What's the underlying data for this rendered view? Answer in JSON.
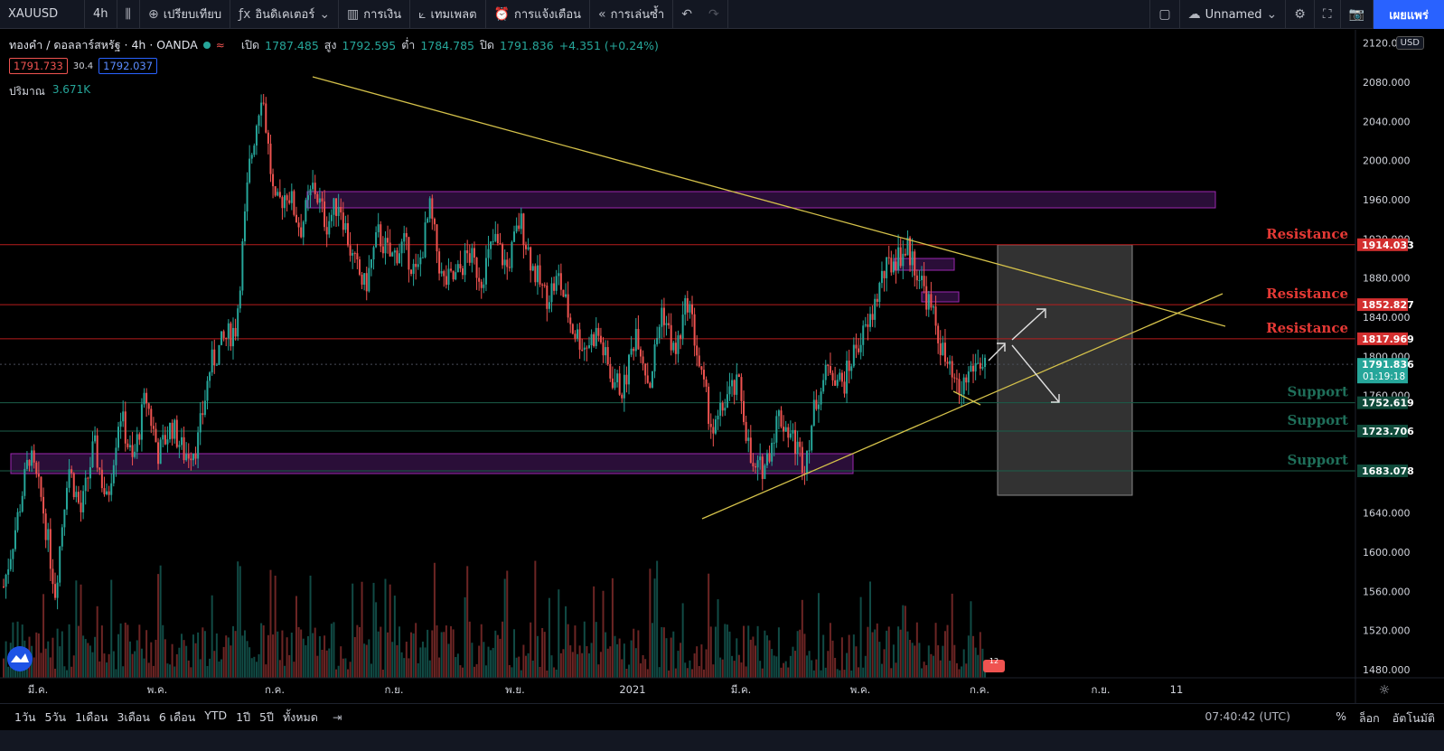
{
  "toolbar": {
    "symbol": "XAUUSD",
    "interval": "4h",
    "compare_label": "เปรียบเทียบ",
    "indicators_label": "อินดิเคเตอร์",
    "financials_label": "การเงิน",
    "templates_label": "เทมเพลต",
    "alerts_label": "การแจ้งเตือน",
    "replay_label": "การเล่นซ้ำ",
    "layout_name": "Unnamed",
    "publish_label": "เผยแพร่"
  },
  "legend": {
    "title": "ทองคำ / ดอลลาร์สหรัฐ · 4h · OANDA",
    "open_label": "เปิด",
    "open": "1787.485",
    "high_label": "สูง",
    "high": "1792.595",
    "low_label": "ต่ำ",
    "low": "1784.785",
    "close_label": "ปิด",
    "close": "1791.836",
    "change": "+4.351 (+0.24%)",
    "bid": "1791.733",
    "spread": "30.4",
    "ask": "1792.037",
    "volume_label": "ปริมาณ",
    "volume": "3.671K"
  },
  "price_axis": {
    "currency": "USD",
    "ticks": [
      "2120.000",
      "2080.000",
      "2040.000",
      "2000.000",
      "1960.000",
      "1920.000",
      "1880.000",
      "1840.000",
      "1800.000",
      "1760.000",
      "1640.000",
      "1600.000",
      "1560.000",
      "1520.000",
      "1480.000"
    ],
    "tags": [
      {
        "value": "1914.033",
        "color": "#d32f2f"
      },
      {
        "value": "1852.827",
        "color": "#d32f2f"
      },
      {
        "value": "1817.969",
        "color": "#d32f2f"
      },
      {
        "value": "1791.836",
        "color": "#26a69a",
        "sub": "01:19:18"
      },
      {
        "value": "1752.619",
        "color": "#0f4a3a"
      },
      {
        "value": "1723.706",
        "color": "#0f4a3a"
      },
      {
        "value": "1683.078",
        "color": "#0f4a3a"
      }
    ]
  },
  "levels": [
    {
      "label": "Resistance",
      "price": 1914.033,
      "kind": "res"
    },
    {
      "label": "Resistance",
      "price": 1852.827,
      "kind": "res"
    },
    {
      "label": "Resistance",
      "price": 1817.969,
      "kind": "res"
    },
    {
      "label": "Support",
      "price": 1752.619,
      "kind": "sup"
    },
    {
      "label": "Support",
      "price": 1723.706,
      "kind": "sup"
    },
    {
      "label": "Support",
      "price": 1683.078,
      "kind": "sup"
    }
  ],
  "time_axis": [
    "มี.ค.",
    "พ.ค.",
    "ก.ค.",
    "ก.ย.",
    "พ.ย.",
    "2021",
    "มี.ค.",
    "พ.ค.",
    "ก.ค.",
    "ก.ย.",
    "11"
  ],
  "ranges": [
    "1วัน",
    "5วัน",
    "1เดือน",
    "3เดือน",
    "6 เดือน",
    "YTD",
    "1ปี",
    "5ปี",
    "ทั้งหมด"
  ],
  "bottom_right": {
    "time": "07:40:42 (UTC)",
    "percent": "%",
    "log": "ล็อก",
    "auto": "อัตโนมัติ"
  },
  "chart_data": {
    "type": "candlestick",
    "price_path": [
      1565,
      1630,
      1700,
      1650,
      1560,
      1690,
      1640,
      1710,
      1650,
      1745,
      1690,
      1760,
      1700,
      1730,
      1700,
      1710,
      1790,
      1815,
      1830,
      1990,
      2075,
      1950,
      1970,
      1930,
      1975,
      1935,
      1960,
      1900,
      1870,
      1925,
      1900,
      1915,
      1880,
      1950,
      1875,
      1880,
      1905,
      1880,
      1920,
      1890,
      1940,
      1890,
      1860,
      1880,
      1830,
      1810,
      1825,
      1780,
      1765,
      1830,
      1770,
      1850,
      1800,
      1860,
      1780,
      1720,
      1760,
      1770,
      1680,
      1690,
      1740,
      1720,
      1690,
      1760,
      1790,
      1770,
      1810,
      1830,
      1880,
      1900,
      1910,
      1880,
      1840,
      1790,
      1760,
      1790,
      1795
    ],
    "price_range": [
      1470,
      2125
    ]
  }
}
